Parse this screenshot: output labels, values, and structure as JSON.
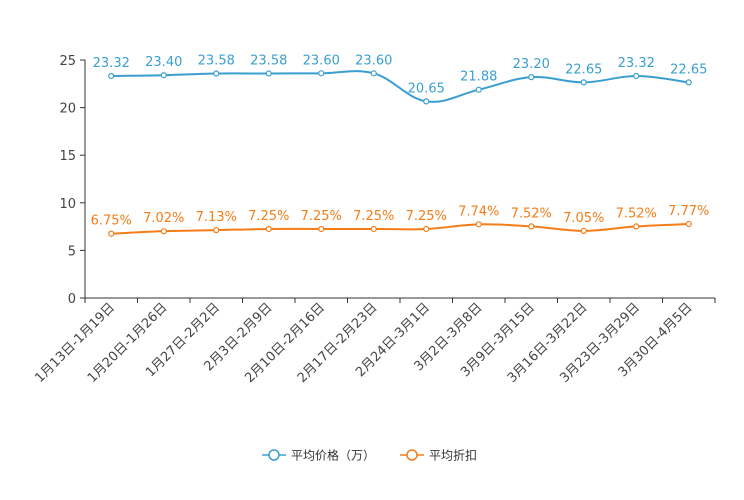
{
  "chart_data": {
    "type": "line",
    "title": "",
    "xlabel": "",
    "ylabel": "",
    "ylim": [
      0,
      25
    ],
    "yticks": [
      0,
      5,
      10,
      15,
      20,
      25
    ],
    "grid": false,
    "legend_position": "bottom-center",
    "categories": [
      "1月13日-1月19日",
      "1月20日-1月26日",
      "1月27日-2月2日",
      "2月3日-2月9日",
      "2月10日-2月16日",
      "2月17日-2月23日",
      "2月24日-3月1日",
      "3月2日-3月8日",
      "3月9日-3月15日",
      "3月16日-3月22日",
      "3月23日-3月29日",
      "3月30日-4月5日"
    ],
    "series": [
      {
        "name": "平均价格（万）",
        "color": "#3a9fd0",
        "values": [
          23.32,
          23.4,
          23.58,
          23.58,
          23.6,
          23.6,
          20.65,
          21.88,
          23.2,
          22.65,
          23.32,
          22.65
        ],
        "labels": [
          "23.32",
          "23.40",
          "23.58",
          "23.58",
          "23.60",
          "23.60",
          "20.65",
          "21.88",
          "23.20",
          "22.65",
          "23.32",
          "22.65"
        ]
      },
      {
        "name": "平均折扣",
        "color": "#f57d18",
        "values": [
          6.75,
          7.02,
          7.13,
          7.25,
          7.25,
          7.25,
          7.25,
          7.74,
          7.52,
          7.05,
          7.52,
          7.77
        ],
        "labels": [
          "6.75%",
          "7.02%",
          "7.13%",
          "7.25%",
          "7.25%",
          "7.25%",
          "7.25%",
          "7.74%",
          "7.52%",
          "7.05%",
          "7.52%",
          "7.77%"
        ]
      }
    ]
  }
}
